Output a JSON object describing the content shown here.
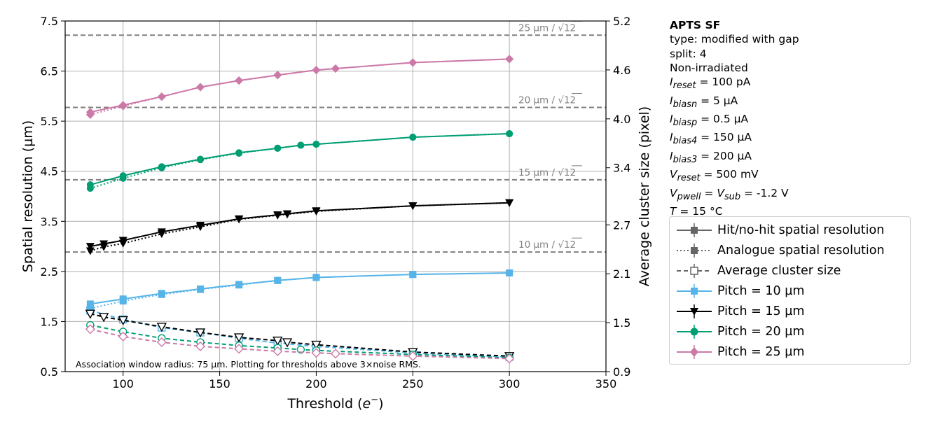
{
  "chart_data": {
    "type": "line",
    "xlabel": "Threshold (e⁻)",
    "xlabel_main": "Threshold (",
    "xlabel_var": "e",
    "xlabel_sup": "−",
    "xlabel_end": ")",
    "ylabel_left": "Spatial resolution (µm)",
    "ylabel_right": "Average cluster size (pixel)",
    "xlim": [
      70,
      350
    ],
    "ylim_left": [
      0.5,
      7.5
    ],
    "ylim_right": [
      0.9,
      5.2
    ],
    "x_ticks": [
      "100",
      "150",
      "200",
      "250",
      "300",
      "350"
    ],
    "x_tick_values": [
      100,
      150,
      200,
      250,
      300,
      350
    ],
    "y_left_ticks": [
      "0.5",
      "1.5",
      "2.5",
      "3.5",
      "4.5",
      "5.5",
      "6.5",
      "7.5"
    ],
    "y_left_tick_values": [
      0.5,
      1.5,
      2.5,
      3.5,
      4.5,
      5.5,
      6.5,
      7.5
    ],
    "y_right_ticks": [
      "0.9",
      "1.5",
      "2.1",
      "2.7",
      "3.4",
      "4.0",
      "4.6",
      "5.2"
    ],
    "y_right_tick_values": [
      0.9,
      1.5,
      2.1,
      2.7,
      3.4,
      4.0,
      4.6,
      5.2
    ],
    "grid": true,
    "reference_lines": [
      {
        "value": 7.217,
        "label_main": "25 µm / ",
        "label_rad": "12"
      },
      {
        "value": 5.774,
        "label_main": "20 µm / ",
        "label_rad": "12"
      },
      {
        "value": 4.33,
        "label_main": "15 µm / ",
        "label_rad": "12"
      },
      {
        "value": 2.887,
        "label_main": "10 µm / ",
        "label_rad": "12"
      }
    ],
    "annotation": "Association window radius: 75 µm. Plotting for thresholds above 3×noise RMS.",
    "series": [
      {
        "name": "Pitch = 10 µm",
        "color": "#56b4e9",
        "marker": "square",
        "x": [
          83,
          100,
          120,
          140,
          160,
          180,
          200,
          250,
          300
        ],
        "hit_no_hit": [
          1.85,
          1.95,
          2.06,
          2.15,
          2.24,
          2.32,
          2.38,
          2.44,
          2.47
        ],
        "analogue": [
          1.76,
          1.91,
          2.04,
          2.14,
          2.23,
          2.32,
          2.38,
          2.44,
          2.47
        ],
        "cluster_size": [
          1.65,
          1.54,
          1.44,
          1.38,
          1.31,
          1.25,
          1.21,
          1.13,
          1.08
        ]
      },
      {
        "name": "Pitch = 15 µm",
        "color": "#000000",
        "marker": "triangle_down",
        "x": [
          83,
          90,
          100,
          120,
          140,
          160,
          180,
          185,
          200,
          250,
          300
        ],
        "hit_no_hit": [
          3.0,
          3.05,
          3.12,
          3.29,
          3.42,
          3.55,
          3.63,
          3.65,
          3.71,
          3.81,
          3.87
        ],
        "analogue": [
          2.91,
          2.99,
          3.06,
          3.25,
          3.39,
          3.54,
          3.62,
          3.64,
          3.7,
          3.81,
          3.87
        ],
        "cluster_size": [
          1.61,
          1.57,
          1.53,
          1.45,
          1.38,
          1.32,
          1.28,
          1.26,
          1.23,
          1.14,
          1.09
        ]
      },
      {
        "name": "Pitch = 20 µm",
        "color": "#009e73",
        "marker": "circle",
        "x": [
          83,
          100,
          120,
          140,
          160,
          180,
          192,
          200,
          250,
          300
        ],
        "hit_no_hit": [
          4.23,
          4.41,
          4.59,
          4.74,
          4.87,
          4.96,
          5.02,
          5.04,
          5.18,
          5.25
        ],
        "analogue": [
          4.16,
          4.36,
          4.57,
          4.73,
          4.86,
          4.96,
          5.02,
          5.04,
          5.18,
          5.25
        ],
        "cluster_size": [
          1.47,
          1.39,
          1.31,
          1.26,
          1.22,
          1.19,
          1.17,
          1.16,
          1.11,
          1.07
        ]
      },
      {
        "name": "Pitch = 25 µm",
        "color": "#cc79a7",
        "marker": "diamond",
        "x": [
          83,
          100,
          120,
          140,
          160,
          180,
          200,
          210,
          250,
          300
        ],
        "hit_no_hit": [
          5.68,
          5.82,
          5.99,
          6.18,
          6.31,
          6.42,
          6.52,
          6.55,
          6.67,
          6.74
        ],
        "analogue": [
          5.63,
          5.8,
          5.99,
          6.18,
          6.31,
          6.42,
          6.52,
          6.55,
          6.67,
          6.74
        ],
        "cluster_size": [
          1.42,
          1.33,
          1.26,
          1.21,
          1.18,
          1.15,
          1.13,
          1.12,
          1.09,
          1.06
        ]
      }
    ]
  },
  "info": {
    "title": "APTS SF",
    "type_line": "type: modified with gap",
    "split_line": "split:  4",
    "irradiation": "Non-irradiated",
    "i_reset": {
      "sym": "I",
      "sub": "reset",
      "val": " = 100 pA"
    },
    "i_biasn": {
      "sym": "I",
      "sub": "biasn",
      "val": " = 5 µA"
    },
    "i_biasp": {
      "sym": "I",
      "sub": "biasp",
      "val": " = 0.5 µA"
    },
    "i_bias4": {
      "sym": "I",
      "sub": "bias4",
      "val": " = 150 µA"
    },
    "i_bias3": {
      "sym": "I",
      "sub": "bias3",
      "val": " = 200 µA"
    },
    "v_reset": {
      "sym": "V",
      "sub": "reset",
      "val": " = 500 mV"
    },
    "v_pwell": {
      "sym": "V",
      "sub": "pwell",
      "mid": " = ",
      "sym2": "V",
      "sub2": "sub",
      "val": " = -1.2 V"
    },
    "temp": {
      "sym": "T",
      "val": " = 15 °C"
    }
  },
  "legend": {
    "items": [
      "Hit/no-hit spatial resolution",
      "Analogue spatial resolution",
      "Average cluster size",
      "Pitch = 10 µm",
      "Pitch = 15 µm",
      "Pitch = 20 µm",
      "Pitch = 25 µm"
    ]
  }
}
